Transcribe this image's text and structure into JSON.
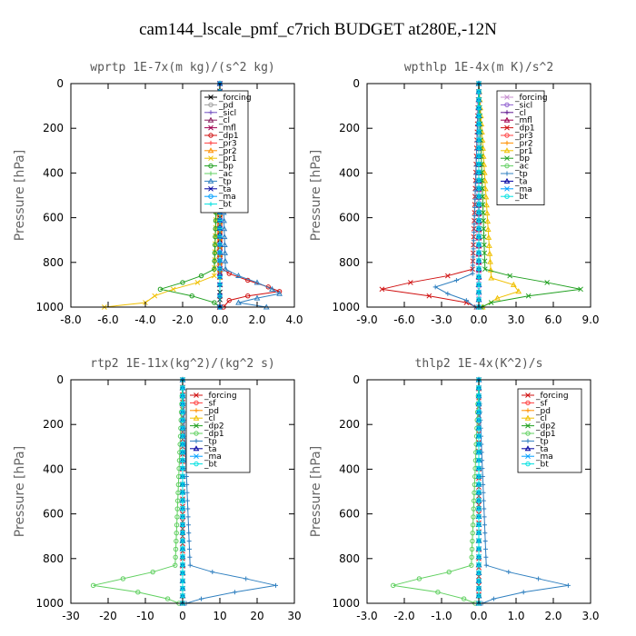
{
  "title": "cam144_lscale_pmf_c7rich  BUDGET at280E,-12N",
  "chart_data": [
    {
      "type": "line",
      "title": "wprtp   1E-7x(m kg)/(s^2 kg)",
      "xlabel": "",
      "ylabel": "Pressure [hPa]",
      "xlim": [
        -8.0,
        4.0
      ],
      "ylim": [
        1000,
        0
      ],
      "xticks": [
        -8.0,
        -6.0,
        -4.0,
        -2.0,
        0.0,
        2.0,
        4.0
      ],
      "xtick_labels": [
        "-8.0",
        "-6.0",
        "-4.0",
        "-2.0",
        "0.0",
        "2.0",
        "4.0"
      ],
      "yticks": [
        0,
        200,
        400,
        600,
        800,
        1000
      ],
      "legend_position": "top-right",
      "series": [
        {
          "name": "_forcing",
          "color": "#000000",
          "y": [
            0,
            100,
            200,
            300,
            400,
            500,
            600,
            700,
            800,
            900,
            1000
          ],
          "x": [
            0,
            0,
            0,
            0,
            0,
            0,
            0,
            0,
            0,
            0,
            0
          ]
        },
        {
          "name": "_pd",
          "color": "#a0a0a0",
          "y": [
            0,
            800,
            850,
            900,
            950,
            1000
          ],
          "x": [
            0,
            0,
            0,
            0,
            0,
            0
          ]
        },
        {
          "name": "_sicl",
          "color": "#7050c0",
          "y": [
            0,
            800,
            850,
            900,
            950,
            1000
          ],
          "x": [
            0,
            0,
            0,
            0,
            0,
            0
          ]
        },
        {
          "name": "_cl",
          "color": "#8a2060",
          "y": [
            0,
            800,
            850,
            900,
            950,
            1000
          ],
          "x": [
            0,
            0,
            0,
            0,
            0,
            0
          ]
        },
        {
          "name": "_mfl",
          "color": "#a00050",
          "y": [
            0,
            800,
            850,
            900,
            950,
            1000
          ],
          "x": [
            0,
            0,
            0,
            0,
            0,
            0
          ]
        },
        {
          "name": "_dp1",
          "color": "#d01010",
          "y": [
            0,
            820,
            850,
            880,
            910,
            930,
            950,
            970,
            1000
          ],
          "x": [
            0,
            0,
            0.5,
            1.5,
            2.6,
            3.2,
            1.5,
            0.5,
            0.2
          ]
        },
        {
          "name": "_pr3",
          "color": "#ff4040",
          "y": [
            0,
            800,
            900,
            950,
            1000
          ],
          "x": [
            0,
            0,
            0,
            0,
            0
          ]
        },
        {
          "name": "_pr2",
          "color": "#ff9000",
          "y": [
            0,
            800,
            900,
            950,
            1000
          ],
          "x": [
            0,
            0,
            0,
            0,
            0
          ]
        },
        {
          "name": "_pr1",
          "color": "#f0c000",
          "y": [
            0,
            860,
            890,
            920,
            950,
            980,
            1000
          ],
          "x": [
            0,
            -0.3,
            -1.2,
            -2.5,
            -3.5,
            -4.0,
            -6.2
          ]
        },
        {
          "name": "_bp",
          "color": "#20a020",
          "y": [
            0,
            830,
            860,
            890,
            920,
            950,
            980,
            1000
          ],
          "x": [
            0,
            -0.3,
            -1.0,
            -2.0,
            -3.2,
            -1.5,
            -0.3,
            0
          ]
        },
        {
          "name": "_ac",
          "color": "#60d060",
          "y": [
            0,
            900,
            950,
            1000
          ],
          "x": [
            0,
            0,
            0,
            0
          ]
        },
        {
          "name": "_tp",
          "color": "#3080c0",
          "y": [
            0,
            830,
            860,
            890,
            920,
            940,
            960,
            980,
            1000
          ],
          "x": [
            0,
            0.3,
            1.0,
            2.0,
            2.8,
            3.2,
            2.0,
            1.0,
            2.5
          ]
        },
        {
          "name": "_ta",
          "color": "#0000a0",
          "y": [
            0,
            900,
            950,
            1000
          ],
          "x": [
            0,
            0,
            0,
            0
          ]
        },
        {
          "name": "_ma",
          "color": "#00a0ff",
          "y": [
            0,
            900,
            950,
            1000
          ],
          "x": [
            0,
            0,
            0,
            0
          ]
        },
        {
          "name": "_bt",
          "color": "#00e0e0",
          "y": [
            0,
            900,
            950,
            1000
          ],
          "x": [
            0,
            0,
            0,
            0
          ]
        }
      ]
    },
    {
      "type": "line",
      "title": "wpthlp   1E-4x(m K)/s^2",
      "xlabel": "",
      "ylabel": "Pressure [hPa]",
      "xlim": [
        -9.0,
        9.0
      ],
      "ylim": [
        1000,
        0
      ],
      "xticks": [
        -9.0,
        -6.0,
        -3.0,
        0.0,
        3.0,
        6.0,
        9.0
      ],
      "xtick_labels": [
        "-9.0",
        "-6.0",
        "-3.0",
        "0.0",
        "3.0",
        "6.0",
        "9.0"
      ],
      "yticks": [
        0,
        200,
        400,
        600,
        800,
        1000
      ],
      "legend_position": "top-right",
      "series": [
        {
          "name": "_forcing",
          "color": "#c890d0",
          "y": [
            0,
            200,
            400,
            600,
            800,
            1000
          ],
          "x": [
            0,
            0,
            0,
            0,
            0,
            0
          ]
        },
        {
          "name": "_sicl",
          "color": "#9060d0",
          "y": [
            0,
            800,
            900,
            1000
          ],
          "x": [
            0,
            0,
            0,
            0
          ]
        },
        {
          "name": "_cl",
          "color": "#601890",
          "y": [
            0,
            800,
            900,
            1000
          ],
          "x": [
            0,
            0,
            0,
            0
          ]
        },
        {
          "name": "_mfl",
          "color": "#a00050",
          "y": [
            0,
            800,
            900,
            1000
          ],
          "x": [
            0,
            0,
            0,
            0
          ]
        },
        {
          "name": "_dp1",
          "color": "#d01010",
          "y": [
            0,
            830,
            860,
            890,
            920,
            950,
            980,
            1000
          ],
          "x": [
            0,
            -0.5,
            -2.5,
            -5.5,
            -7.8,
            -4.0,
            -1.0,
            -0.2
          ]
        },
        {
          "name": "_pr3",
          "color": "#ff4040",
          "y": [
            0,
            900,
            1000
          ],
          "x": [
            0,
            0,
            0
          ]
        },
        {
          "name": "_pr2",
          "color": "#ff9000",
          "y": [
            0,
            900,
            1000
          ],
          "x": [
            0,
            0,
            0
          ]
        },
        {
          "name": "_pr1",
          "color": "#f0c000",
          "y": [
            0,
            870,
            900,
            930,
            960,
            1000
          ],
          "x": [
            0,
            1.0,
            2.8,
            3.2,
            1.5,
            0.3
          ]
        },
        {
          "name": "_bp",
          "color": "#20a020",
          "y": [
            0,
            830,
            860,
            890,
            920,
            950,
            980,
            1000
          ],
          "x": [
            0,
            0.5,
            2.5,
            5.5,
            8.2,
            4.0,
            1.0,
            0.2
          ]
        },
        {
          "name": "_ac",
          "color": "#60d060",
          "y": [
            0,
            900,
            1000
          ],
          "x": [
            0,
            0,
            0
          ]
        },
        {
          "name": "_tp",
          "color": "#3080c0",
          "y": [
            0,
            850,
            880,
            910,
            940,
            970,
            1000
          ],
          "x": [
            0,
            -0.5,
            -1.8,
            -3.5,
            -2.5,
            -1.0,
            -0.3
          ]
        },
        {
          "name": "_ta",
          "color": "#0000a0",
          "y": [
            0,
            900,
            1000
          ],
          "x": [
            0,
            0,
            0
          ]
        },
        {
          "name": "_ma",
          "color": "#00a0ff",
          "y": [
            0,
            900,
            1000
          ],
          "x": [
            0,
            0,
            0
          ]
        },
        {
          "name": "_bt",
          "color": "#00e0e0",
          "y": [
            0,
            900,
            1000
          ],
          "x": [
            0,
            0,
            0
          ]
        }
      ]
    },
    {
      "type": "line",
      "title": "rtp2   1E-11x(kg^2)/(kg^2 s)",
      "xlabel": "",
      "ylabel": "Pressure [hPa]",
      "xlim": [
        -30,
        30
      ],
      "ylim": [
        1000,
        0
      ],
      "xticks": [
        -30,
        -20,
        -10,
        0,
        10,
        20,
        30
      ],
      "xtick_labels": [
        "-30",
        "-20",
        "-10",
        "0",
        "10",
        "20",
        "30"
      ],
      "yticks": [
        0,
        200,
        400,
        600,
        800,
        1000
      ],
      "legend_position": "top-right",
      "series": [
        {
          "name": "_forcing",
          "color": "#d01010",
          "y": [
            0,
            100,
            200,
            300,
            400,
            500,
            600,
            700,
            800,
            900,
            1000
          ],
          "x": [
            0,
            0,
            0,
            0,
            0,
            0,
            0,
            0,
            0,
            0,
            0
          ]
        },
        {
          "name": "_sf",
          "color": "#ff4040",
          "y": [
            0,
            900,
            1000
          ],
          "x": [
            0,
            0,
            0
          ]
        },
        {
          "name": "_pd",
          "color": "#ff9000",
          "y": [
            0,
            900,
            1000
          ],
          "x": [
            0,
            0,
            0
          ]
        },
        {
          "name": "_cl",
          "color": "#f0c000",
          "y": [
            0,
            900,
            1000
          ],
          "x": [
            0,
            0,
            0
          ]
        },
        {
          "name": "_dp2",
          "color": "#20a020",
          "y": [
            0,
            900,
            1000
          ],
          "x": [
            0,
            0,
            0
          ]
        },
        {
          "name": "_dp1",
          "color": "#60d060",
          "y": [
            0,
            830,
            860,
            890,
            920,
            950,
            980,
            1000
          ],
          "x": [
            0,
            -2,
            -8,
            -16,
            -24,
            -12,
            -4,
            -1
          ]
        },
        {
          "name": "_tp",
          "color": "#3080c0",
          "y": [
            0,
            830,
            860,
            890,
            920,
            950,
            980,
            1000
          ],
          "x": [
            0,
            2,
            8,
            17,
            25,
            14,
            5,
            1
          ]
        },
        {
          "name": "_ta",
          "color": "#0000a0",
          "y": [
            0,
            900,
            1000
          ],
          "x": [
            0,
            0,
            0
          ]
        },
        {
          "name": "_ma",
          "color": "#00a0ff",
          "y": [
            0,
            900,
            1000
          ],
          "x": [
            0,
            0,
            0
          ]
        },
        {
          "name": "_bt",
          "color": "#00e0e0",
          "y": [
            0,
            900,
            1000
          ],
          "x": [
            0,
            0,
            0
          ]
        }
      ]
    },
    {
      "type": "line",
      "title": "thlp2   1E-4x(K^2)/s",
      "xlabel": "",
      "ylabel": "Pressure [hPa]",
      "xlim": [
        -3.0,
        3.0
      ],
      "ylim": [
        1000,
        0
      ],
      "xticks": [
        -3.0,
        -2.0,
        -1.0,
        0.0,
        1.0,
        2.0,
        3.0
      ],
      "xtick_labels": [
        "-3.0",
        "-2.0",
        "-1.0",
        "0.0",
        "1.0",
        "2.0",
        "3.0"
      ],
      "yticks": [
        0,
        200,
        400,
        600,
        800,
        1000
      ],
      "legend_position": "top-right",
      "series": [
        {
          "name": "_forcing",
          "color": "#d01010",
          "y": [
            0,
            200,
            400,
            600,
            800,
            1000
          ],
          "x": [
            0,
            0,
            0,
            0,
            0,
            0
          ]
        },
        {
          "name": "_sf",
          "color": "#ff4040",
          "y": [
            0,
            900,
            1000
          ],
          "x": [
            0,
            0,
            0
          ]
        },
        {
          "name": "_pd",
          "color": "#ff9000",
          "y": [
            0,
            900,
            1000
          ],
          "x": [
            0,
            0,
            0
          ]
        },
        {
          "name": "_cl",
          "color": "#f0c000",
          "y": [
            0,
            900,
            1000
          ],
          "x": [
            0,
            0,
            0
          ]
        },
        {
          "name": "_dp2",
          "color": "#20a020",
          "y": [
            0,
            900,
            1000
          ],
          "x": [
            0,
            0,
            0
          ]
        },
        {
          "name": "_dp1",
          "color": "#60d060",
          "y": [
            0,
            830,
            860,
            890,
            920,
            950,
            980,
            1000
          ],
          "x": [
            0,
            -0.2,
            -0.8,
            -1.6,
            -2.3,
            -1.1,
            -0.4,
            -0.1
          ]
        },
        {
          "name": "_tp",
          "color": "#3080c0",
          "y": [
            0,
            830,
            860,
            890,
            920,
            950,
            980,
            1000
          ],
          "x": [
            0,
            0.2,
            0.8,
            1.6,
            2.4,
            1.2,
            0.4,
            0.1
          ]
        },
        {
          "name": "_ta",
          "color": "#0000a0",
          "y": [
            0,
            900,
            1000
          ],
          "x": [
            0,
            0,
            0
          ]
        },
        {
          "name": "_ma",
          "color": "#00a0ff",
          "y": [
            0,
            900,
            1000
          ],
          "x": [
            0,
            0,
            0
          ]
        },
        {
          "name": "_bt",
          "color": "#00e0e0",
          "y": [
            0,
            900,
            1000
          ],
          "x": [
            0,
            0,
            0
          ]
        }
      ]
    }
  ]
}
